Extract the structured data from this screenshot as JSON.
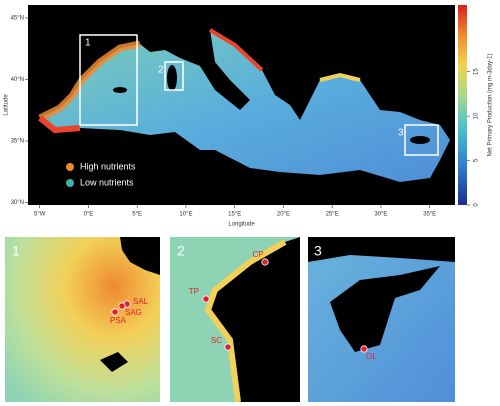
{
  "map": {
    "x_label": "Longitude",
    "y_label": "Latitude",
    "xlim": [
      -6.2,
      37.6
    ],
    "ylim": [
      29.8,
      46.05
    ],
    "xticks": [
      {
        "value": -5,
        "label": "5°W"
      },
      {
        "value": 0,
        "label": "0°E"
      },
      {
        "value": 5,
        "label": "5°E"
      },
      {
        "value": 10,
        "label": "10°E"
      },
      {
        "value": 15,
        "label": "15°E"
      },
      {
        "value": 20,
        "label": "20°E"
      },
      {
        "value": 25,
        "label": "25°E"
      },
      {
        "value": 30,
        "label": "30°E"
      },
      {
        "value": 35,
        "label": "35°E"
      }
    ],
    "yticks": [
      {
        "value": 45,
        "label": "45°N"
      },
      {
        "value": 40,
        "label": "40°N"
      },
      {
        "value": 35,
        "label": "35°N"
      },
      {
        "value": 30,
        "label": "30°N"
      }
    ],
    "legend": [
      {
        "name": "High nutrients",
        "color": "#f08a30"
      },
      {
        "name": "Low nutrients",
        "color": "#3bb3a8"
      }
    ],
    "boxes": [
      "1",
      "2",
      "3"
    ]
  },
  "colorbar": {
    "label": "Net Primary Production (mg m-3day-1)",
    "lim": [
      0,
      22.5
    ],
    "ticks": [
      0,
      5,
      10,
      15
    ]
  },
  "panels": [
    {
      "label": "1",
      "sites": [
        "SAL",
        "SAG",
        "PSA"
      ]
    },
    {
      "label": "2",
      "sites": [
        "CP",
        "TP",
        "SC"
      ]
    },
    {
      "label": "3",
      "sites": [
        "OL"
      ]
    }
  ]
}
